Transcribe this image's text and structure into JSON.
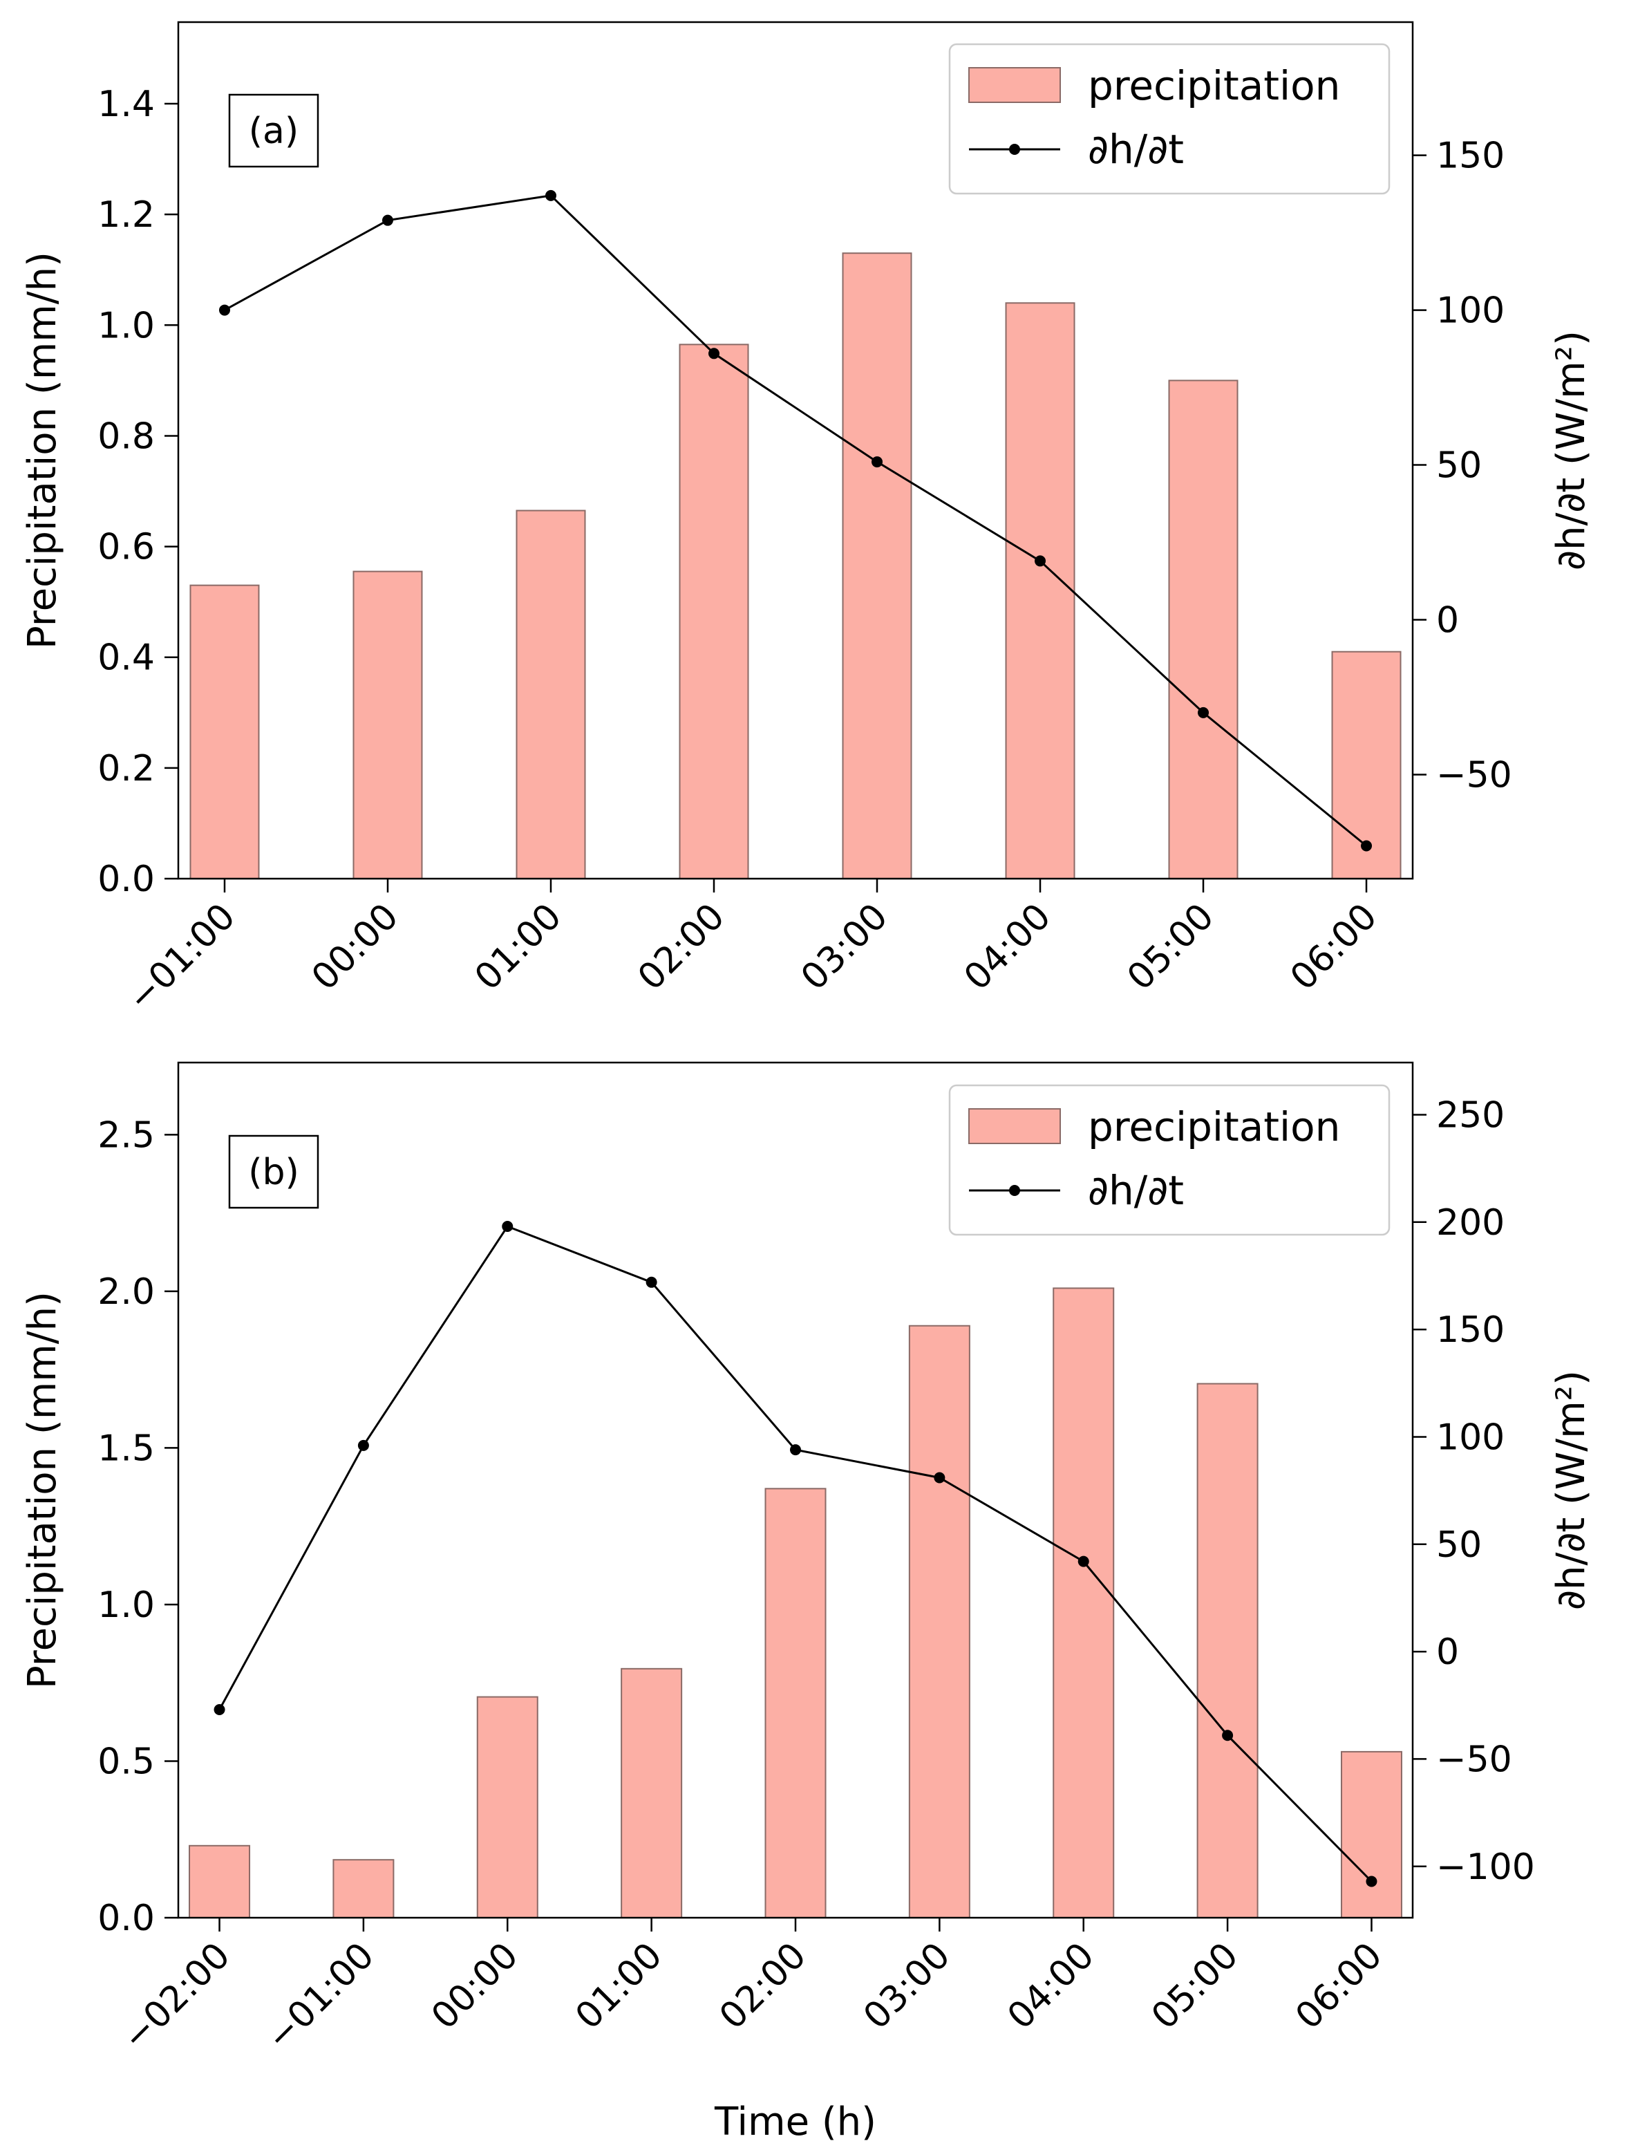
{
  "colors": {
    "bar_fill": "#fcafa5",
    "bar_edge": "#8a6a66",
    "line": "#000000",
    "axis": "#000000"
  },
  "chart_data": [
    {
      "type": "bar",
      "panel_label": "(a)",
      "xlabel": "",
      "ylabel": "Precipitation (mm/h)",
      "y2label": "∂h/∂t (W/m²)",
      "categories": [
        "−01:00",
        "00:00",
        "01:00",
        "02:00",
        "03:00",
        "04:00",
        "05:00",
        "06:00"
      ],
      "series": [
        {
          "name": "precipitation",
          "type": "bar",
          "axis": "left",
          "values": [
            0.53,
            0.555,
            0.665,
            0.965,
            1.13,
            1.04,
            0.9,
            0.41
          ]
        },
        {
          "name": "∂h/∂t",
          "type": "line",
          "axis": "right",
          "values": [
            100,
            129,
            137,
            86,
            51,
            19,
            -30,
            -73
          ]
        }
      ],
      "ylim": [
        0,
        1.5474
      ],
      "yticks": [
        0.0,
        0.2,
        0.4,
        0.6,
        0.8,
        1.0,
        1.2,
        1.4
      ],
      "ytick_labels": [
        "0.0",
        "0.2",
        "0.4",
        "0.6",
        "0.8",
        "1.0",
        "1.2",
        "1.4"
      ],
      "y2lim": [
        -83.6,
        193.0
      ],
      "y2ticks": [
        -50,
        0,
        50,
        100,
        150
      ],
      "y2tick_labels": [
        "−50",
        "0",
        "50",
        "100",
        "150"
      ],
      "legend": {
        "position": "top-right",
        "entries": [
          "precipitation",
          "∂h/∂t"
        ]
      }
    },
    {
      "type": "bar",
      "panel_label": "(b)",
      "xlabel": "Time (h)",
      "ylabel": "Precipitation (mm/h)",
      "y2label": "∂h/∂t (W/m²)",
      "categories": [
        "−02:00",
        "−01:00",
        "00:00",
        "01:00",
        "02:00",
        "03:00",
        "04:00",
        "05:00",
        "06:00"
      ],
      "series": [
        {
          "name": "precipitation",
          "type": "bar",
          "axis": "left",
          "values": [
            0.23,
            0.185,
            0.705,
            0.795,
            1.37,
            1.89,
            2.01,
            1.705,
            0.53
          ]
        },
        {
          "name": "∂h/∂t",
          "type": "line",
          "axis": "right",
          "values": [
            -27,
            96,
            198,
            172,
            94,
            81,
            42,
            -39,
            -107
          ]
        }
      ],
      "ylim": [
        0,
        2.7304
      ],
      "yticks": [
        0.0,
        0.5,
        1.0,
        1.5,
        2.0,
        2.5
      ],
      "ytick_labels": [
        "0.0",
        "0.5",
        "1.0",
        "1.5",
        "2.0",
        "2.5"
      ],
      "y2lim": [
        -123.9,
        274.3
      ],
      "y2ticks": [
        -100,
        -50,
        0,
        50,
        100,
        150,
        200,
        250
      ],
      "y2tick_labels": [
        "−100",
        "−50",
        "0",
        "50",
        "100",
        "150",
        "200",
        "250"
      ],
      "legend": {
        "position": "top-right",
        "entries": [
          "precipitation",
          "∂h/∂t"
        ]
      }
    }
  ]
}
